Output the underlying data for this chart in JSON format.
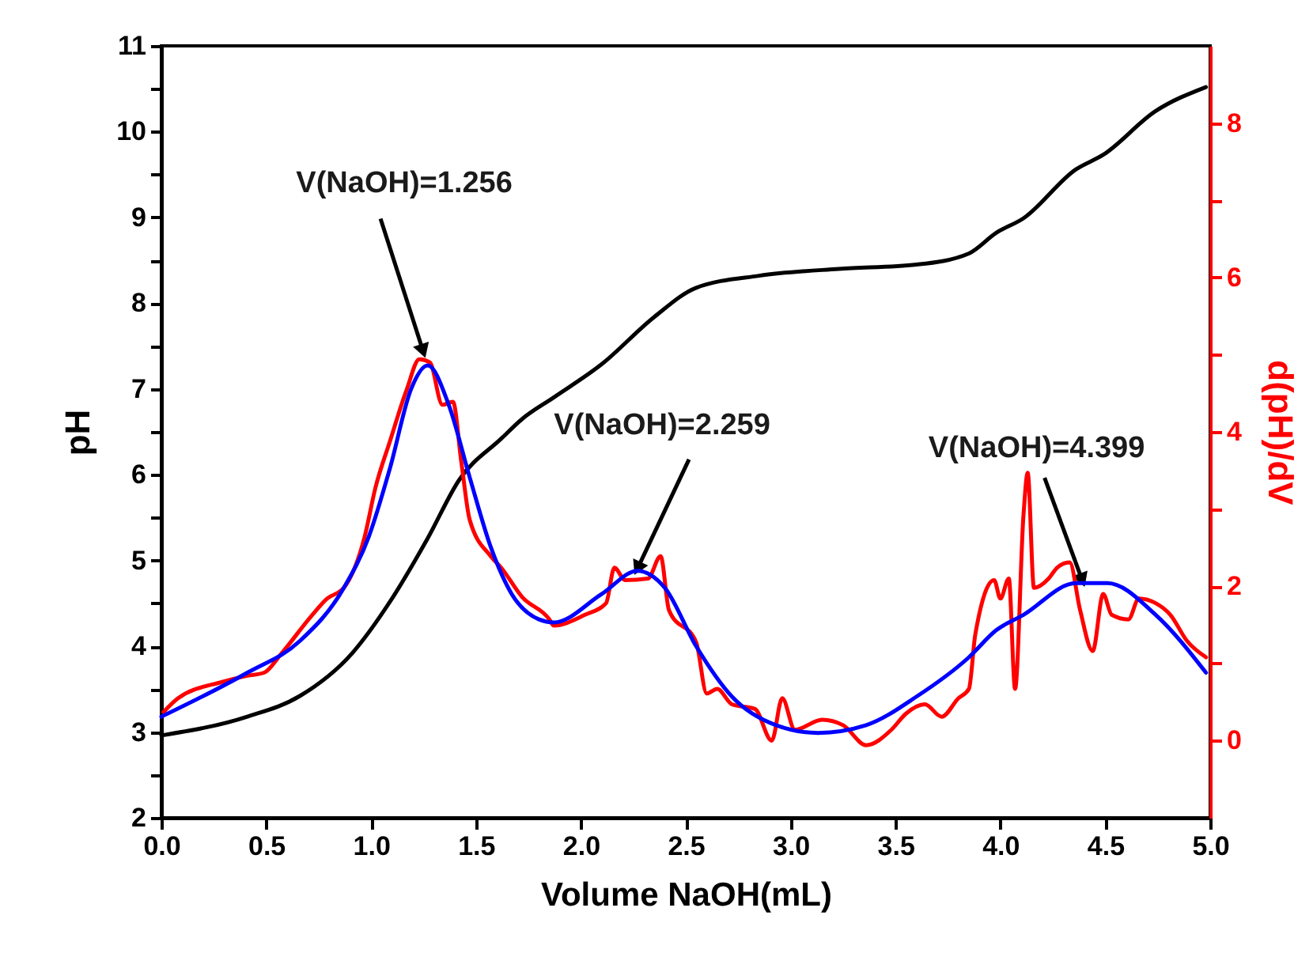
{
  "chart_data": {
    "type": "line",
    "xlabel": "Volume NaOH(mL)",
    "ylabel": "pH",
    "y2label": "d(pH)/dV",
    "xlim": [
      0,
      5
    ],
    "xticks": [
      {
        "value": 0,
        "label": "0.0"
      },
      0.5,
      {
        "value": 1,
        "label": "1.0"
      },
      1.5,
      {
        "value": 2,
        "label": "2.0"
      },
      2.5,
      {
        "value": 3,
        "label": "3.0"
      },
      3.5,
      {
        "value": 4,
        "label": "4.0"
      },
      4.5,
      {
        "value": 5,
        "label": "5.0"
      }
    ],
    "ylim": [
      2,
      11
    ],
    "yticks": [
      2,
      {
        "value": 2.5,
        "label": null
      },
      3,
      {
        "value": 3.5,
        "label": null
      },
      4,
      {
        "value": 4.5,
        "label": null
      },
      5,
      {
        "value": 5.5,
        "label": null
      },
      6,
      {
        "value": 6.5,
        "label": null
      },
      7,
      {
        "value": 7.5,
        "label": null
      },
      8,
      {
        "value": 8.5,
        "label": null
      },
      9,
      {
        "value": 9.5,
        "label": null
      },
      10,
      {
        "value": 10.5,
        "label": null
      },
      11
    ],
    "y2lim": [
      -1,
      9
    ],
    "y2ticks": [
      0,
      {
        "value": 1,
        "label": null
      },
      2,
      {
        "value": 3,
        "label": null
      },
      4,
      {
        "value": 5,
        "label": null
      },
      6,
      {
        "value": 7,
        "label": null
      },
      8
    ],
    "grid": false,
    "annotations": [
      {
        "text": "V(NaOH)=1.256",
        "x": 1.256,
        "y": 7.38
      },
      {
        "text": "V(NaOH)=2.259",
        "x": 2.259,
        "y": 4.85
      },
      {
        "text": "V(NaOH)=4.399",
        "x": 4.399,
        "y": 4.71
      }
    ],
    "series": [
      {
        "color": "#000000",
        "x": [
          0,
          0.41,
          0.66,
          0.91,
          1.09,
          1.27,
          1.42,
          1.62,
          1.72,
          1.87,
          2.1,
          2.35,
          2.55,
          2.85,
          3.23,
          3.6,
          3.85,
          3.98,
          4.11,
          4.36,
          4.49,
          4.74,
          4.98
        ],
        "values": [
          2.96,
          3.18,
          3.42,
          3.92,
          4.52,
          5.26,
          5.94,
          6.42,
          6.65,
          6.9,
          7.29,
          7.84,
          8.18,
          8.32,
          8.4,
          8.45,
          8.58,
          8.82,
          8.99,
          9.56,
          9.73,
          10.24,
          10.52
        ]
      },
      {
        "color": "#ff0000",
        "axis": "y2",
        "x": [
          0.01,
          0.08,
          0.29,
          0.41,
          0.49,
          0.57,
          0.72,
          0.79,
          0.87,
          0.97,
          1.02,
          1.09,
          1.17,
          1.23,
          1.28,
          1.34,
          1.39,
          1.43,
          1.47,
          1.57,
          1.62,
          1.72,
          1.85,
          1.87,
          2.02,
          2.12,
          2.16,
          2.21,
          2.32,
          2.38,
          2.42,
          2.55,
          2.6,
          2.65,
          2.72,
          2.83,
          2.91,
          2.96,
          3.02,
          3.15,
          3.25,
          3.36,
          3.48,
          3.55,
          3.64,
          3.72,
          3.8,
          3.85,
          3.88,
          3.97,
          4.0,
          4.04,
          4.07,
          4.11,
          4.13,
          4.16,
          4.23,
          4.27,
          4.33,
          4.38,
          4.44,
          4.49,
          4.53,
          4.61,
          4.66,
          4.74,
          4.81,
          4.89,
          4.98
        ],
        "values": [
          0.37,
          0.55,
          0.76,
          0.84,
          0.88,
          1.12,
          1.63,
          1.84,
          1.98,
          2.65,
          3.27,
          3.88,
          4.55,
          4.94,
          4.9,
          4.35,
          4.39,
          3.61,
          2.86,
          2.39,
          2.24,
          1.86,
          1.57,
          1.49,
          1.63,
          1.78,
          2.24,
          2.08,
          2.1,
          2.39,
          1.69,
          1.27,
          0.61,
          0.67,
          0.47,
          0.41,
          0,
          0.55,
          0.14,
          0.27,
          0.2,
          -0.06,
          0.14,
          0.35,
          0.47,
          0.31,
          0.55,
          0.67,
          1.37,
          2.08,
          1.84,
          2.1,
          0.67,
          2.92,
          3.47,
          1.98,
          2.1,
          2.24,
          2.31,
          1.69,
          1.16,
          1.9,
          1.63,
          1.57,
          1.84,
          1.78,
          1.63,
          1.29,
          1.08
        ]
      },
      {
        "color": "#0000ff",
        "axis": "y2",
        "x": [
          0,
          0.41,
          0.66,
          0.87,
          0.99,
          1.09,
          1.19,
          1.27,
          1.37,
          1.47,
          1.57,
          1.67,
          1.8,
          1.87,
          2.1,
          2.27,
          2.4,
          2.55,
          2.72,
          2.93,
          3.13,
          3.36,
          3.6,
          3.85,
          3.98,
          4.11,
          4.36,
          4.51,
          4.74,
          4.98
        ],
        "values": [
          0.31,
          0.88,
          1.29,
          1.98,
          2.65,
          3.53,
          4.55,
          4.86,
          4.35,
          3.41,
          2.51,
          1.9,
          1.57,
          1.53,
          1.9,
          2.2,
          1.98,
          1.22,
          0.57,
          0.2,
          0.1,
          0.2,
          0.57,
          1.08,
          1.43,
          1.63,
          2.04,
          2.04,
          1.63,
          0.88
        ]
      }
    ]
  }
}
